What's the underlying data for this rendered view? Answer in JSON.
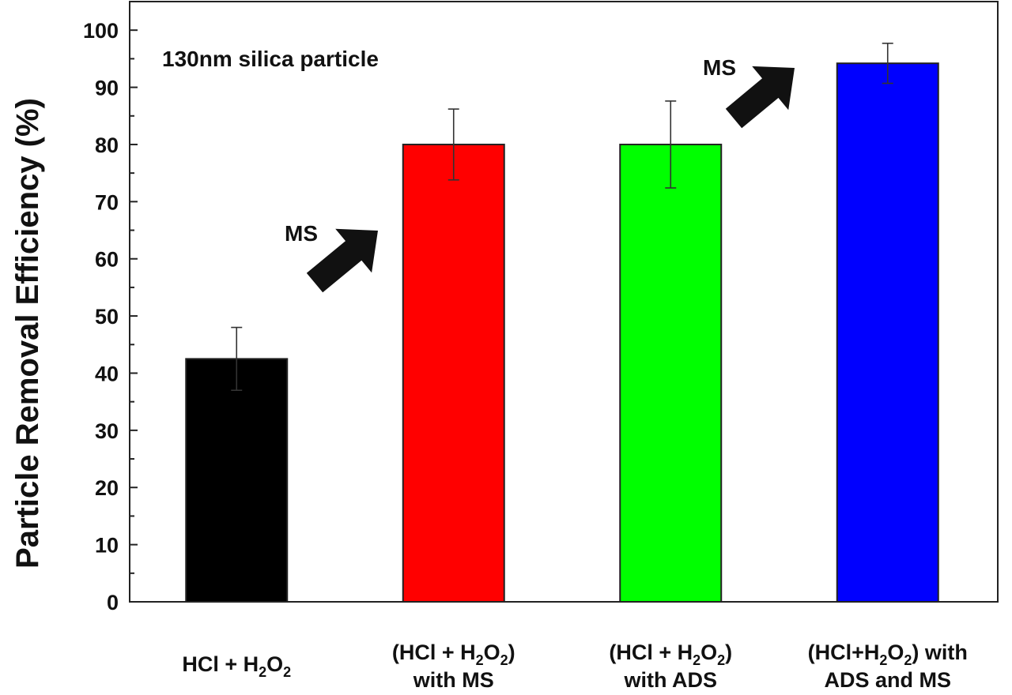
{
  "chart_data": {
    "type": "bar",
    "title": "",
    "ylabel": "Particle Removal Efficiency (%)",
    "ylim": [
      0,
      105
    ],
    "yticks": [
      "0",
      "10",
      "20",
      "30",
      "40",
      "50",
      "60",
      "70",
      "80",
      "90",
      "100"
    ],
    "annotation": "130nm silica particle",
    "categories": [
      [
        {
          "t": "HCl + H"
        },
        {
          "t": "2",
          "sub": true
        },
        {
          "t": "O"
        },
        {
          "t": "2",
          "sub": true
        }
      ],
      [
        {
          "t": "(HCl + H"
        },
        {
          "t": "2",
          "sub": true
        },
        {
          "t": "O"
        },
        {
          "t": "2",
          "sub": true
        },
        {
          "t": ")"
        }
      ],
      [
        {
          "t": "(HCl + H"
        },
        {
          "t": "2",
          "sub": true
        },
        {
          "t": "O"
        },
        {
          "t": "2",
          "sub": true
        },
        {
          "t": ")"
        }
      ],
      [
        {
          "t": "(HCl+H"
        },
        {
          "t": "2",
          "sub": true
        },
        {
          "t": "O"
        },
        {
          "t": "2",
          "sub": true
        },
        {
          "t": ") with"
        }
      ]
    ],
    "categories_line2": [
      "",
      "with MS",
      "with ADS",
      "ADS and MS"
    ],
    "values": [
      42.5,
      80,
      80,
      94.2
    ],
    "errors": [
      5.5,
      6.2,
      7.6,
      3.5
    ],
    "colors": [
      "#000000",
      "#ff0000",
      "#00ff00",
      "#0000ff"
    ],
    "arrows": [
      {
        "label": "MS",
        "from_category": 0,
        "to_category": 1
      },
      {
        "label": "MS",
        "from_category": 2,
        "to_category": 3
      }
    ]
  }
}
